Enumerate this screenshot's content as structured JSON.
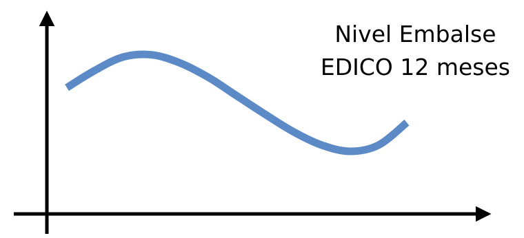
{
  "chart_data": {
    "type": "line",
    "title": [
      "Nivel Embalse",
      "EDICO 12 meses"
    ],
    "xlabel": "",
    "ylabel": "",
    "grid": false,
    "legend": "none",
    "axis_ticks": false,
    "x": [
      0,
      1,
      2,
      3,
      4,
      5,
      6,
      7,
      8,
      9,
      10,
      11,
      12
    ],
    "series": [
      {
        "values": [
          0.68,
          0.85,
          0.98,
          1.0,
          0.92,
          0.78,
          0.6,
          0.42,
          0.25,
          0.12,
          0.06,
          0.12,
          0.34
        ],
        "color": "#5b8ac6"
      }
    ],
    "xlim": [
      0,
      12
    ],
    "ylim": [
      -0.55,
      1.4
    ],
    "colors": {
      "axis": "#000000",
      "line": "#5b8ac6"
    }
  }
}
